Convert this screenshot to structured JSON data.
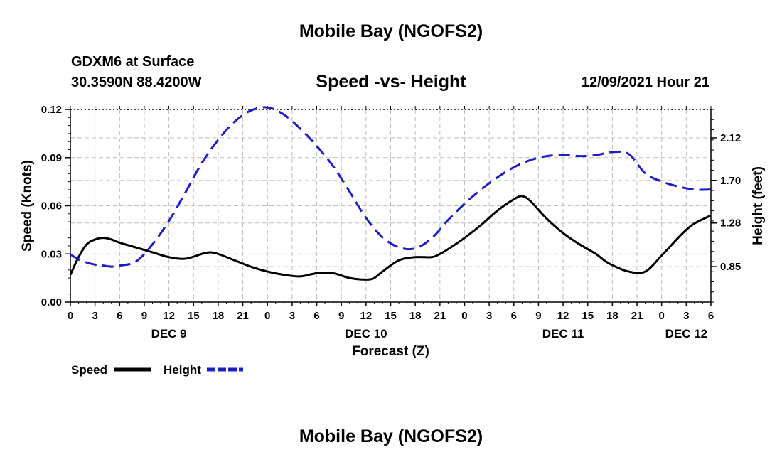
{
  "page": {
    "top_title": "Mobile Bay (NGOFS2)",
    "station_line": "GDXM6 at Surface",
    "coords": "30.3590N  88.4200W",
    "plot_title": "Speed -vs- Height",
    "datetime": "12/09/2021 Hour 21",
    "bottom_title": "Mobile Bay (NGOFS2)"
  },
  "chart_data": {
    "type": "line",
    "title": "Speed -vs- Height",
    "xlabel": "Forecast (Z)",
    "ylabel_left": "Speed (Knots)",
    "ylabel_right": "Height (feet)",
    "x_range_hours": [
      0,
      78
    ],
    "x_tick_labels": [
      "0",
      "3",
      "6",
      "9",
      "12",
      "15",
      "18",
      "21",
      "0",
      "3",
      "6",
      "9",
      "12",
      "15",
      "18",
      "21",
      "0",
      "3",
      "6",
      "9",
      "12",
      "15",
      "18",
      "21",
      "0",
      "3",
      "6"
    ],
    "day_labels": [
      {
        "label": "DEC 9",
        "hour": 12
      },
      {
        "label": "DEC 10",
        "hour": 36
      },
      {
        "label": "DEC 11",
        "hour": 60
      },
      {
        "label": "DEC 12",
        "hour": 75
      }
    ],
    "y_left": {
      "min": 0,
      "max": 0.12,
      "ticks": [
        "0.00",
        "0.03",
        "0.06",
        "0.09",
        "0.12"
      ],
      "tick_values": [
        0,
        0.03,
        0.06,
        0.09,
        0.12
      ]
    },
    "y_right": {
      "min": 0.5,
      "max": 2.4,
      "ticks": [
        "0.85",
        "1.28",
        "1.70",
        "2.12"
      ],
      "tick_values": [
        0.85,
        1.28,
        1.7,
        2.12
      ]
    },
    "grid": true,
    "series": [
      {
        "name": "Speed",
        "axis": "left",
        "color": "#000000",
        "style": "solid",
        "x": [
          0,
          1,
          2,
          3,
          4,
          5,
          6,
          8,
          10,
          12,
          14,
          16,
          17,
          18,
          20,
          22,
          24,
          26,
          28,
          30,
          32,
          34,
          36,
          37,
          38,
          40,
          42,
          44,
          45,
          46,
          48,
          50,
          52,
          54,
          55,
          56,
          58,
          60,
          62,
          64,
          65,
          66,
          68,
          70,
          72,
          74,
          75,
          76,
          78
        ],
        "y": [
          0.017,
          0.028,
          0.036,
          0.039,
          0.04,
          0.039,
          0.037,
          0.034,
          0.031,
          0.028,
          0.027,
          0.03,
          0.031,
          0.03,
          0.026,
          0.022,
          0.019,
          0.017,
          0.016,
          0.018,
          0.018,
          0.015,
          0.014,
          0.015,
          0.019,
          0.026,
          0.028,
          0.028,
          0.03,
          0.033,
          0.04,
          0.048,
          0.057,
          0.064,
          0.066,
          0.063,
          0.052,
          0.043,
          0.036,
          0.03,
          0.026,
          0.023,
          0.019,
          0.019,
          0.029,
          0.04,
          0.045,
          0.049,
          0.054
        ]
      },
      {
        "name": "Height",
        "axis": "right",
        "color": "#1c1cc8",
        "style": "dashed",
        "x": [
          0,
          1,
          2,
          3,
          4,
          5,
          6,
          8,
          10,
          12,
          14,
          16,
          18,
          20,
          22,
          24,
          26,
          28,
          30,
          32,
          34,
          36,
          38,
          40,
          42,
          44,
          46,
          48,
          50,
          52,
          54,
          56,
          58,
          60,
          62,
          64,
          66,
          68,
          70,
          72,
          74,
          76,
          78
        ],
        "y": [
          0.97,
          0.92,
          0.89,
          0.87,
          0.86,
          0.85,
          0.86,
          0.9,
          1.07,
          1.3,
          1.58,
          1.87,
          2.1,
          2.28,
          2.39,
          2.42,
          2.35,
          2.21,
          2.04,
          1.84,
          1.59,
          1.33,
          1.14,
          1.04,
          1.03,
          1.13,
          1.31,
          1.47,
          1.61,
          1.73,
          1.83,
          1.9,
          1.94,
          1.95,
          1.94,
          1.95,
          1.98,
          1.96,
          1.77,
          1.69,
          1.64,
          1.61,
          1.61
        ]
      }
    ],
    "legend": [
      {
        "label": "Speed",
        "color": "#000000",
        "style": "solid"
      },
      {
        "label": "Height",
        "color": "#1c1cc8",
        "style": "dashed"
      }
    ],
    "legend_position": "bottom-left"
  }
}
